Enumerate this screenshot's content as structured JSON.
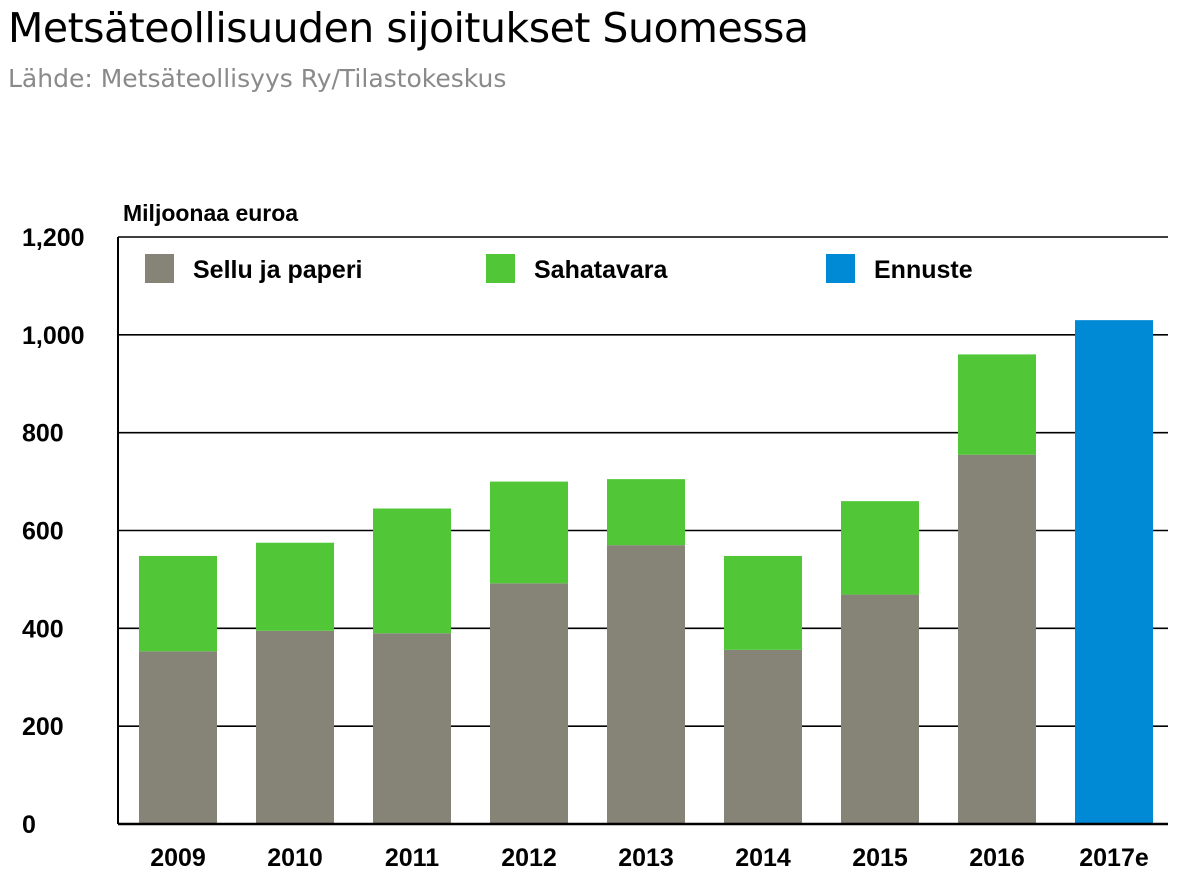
{
  "header": {
    "title": "Metsäteollisuuden sijoitukset Suomessa",
    "source": "Lähde: Metsäteollisyys Ry/Tilastokeskus"
  },
  "chart_data": {
    "type": "bar",
    "stacked": true,
    "title": "Metsäteollisuuden sijoitukset Suomessa",
    "ylabel": "Miljoonaa euroa",
    "xlabel": "",
    "ylim": [
      0,
      1200
    ],
    "yticks": [
      0,
      200,
      400,
      600,
      800,
      1000,
      1200
    ],
    "ytick_labels": [
      "0",
      "200",
      "400",
      "600",
      "800",
      "1,000",
      "1,200"
    ],
    "categories": [
      "2009",
      "2010",
      "2011",
      "2012",
      "2013",
      "2014",
      "2015",
      "2016",
      "2017e"
    ],
    "series": [
      {
        "name": "Sellu ja paperi",
        "color": "#868377",
        "values": [
          353,
          395,
          390,
          492,
          570,
          356,
          469,
          755,
          null
        ]
      },
      {
        "name": "Sahatavara",
        "color": "#51c738",
        "values": [
          195,
          180,
          255,
          208,
          135,
          192,
          191,
          205,
          null
        ]
      },
      {
        "name": "Ennuste",
        "color": "#0089d4",
        "values": [
          null,
          null,
          null,
          null,
          null,
          null,
          null,
          null,
          1030
        ]
      }
    ],
    "grid": true,
    "legend_position": "top"
  }
}
